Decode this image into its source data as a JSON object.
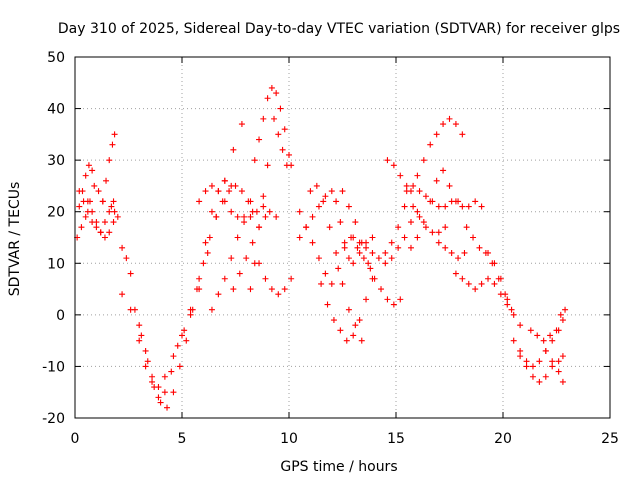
{
  "chart_data": {
    "type": "scatter",
    "title": "Day 310 of 2025, Sidereal Day-to-day VTEC variation (SDTVAR) for receiver glps",
    "xlabel": "GPS time / hours",
    "ylabel": "SDTVAR / TECUs",
    "xlim": [
      0,
      25
    ],
    "ylim": [
      -20,
      50
    ],
    "xticks": [
      "0",
      "5",
      "10",
      "15",
      "20",
      "25"
    ],
    "yticks": [
      "-20",
      "-10",
      "0",
      "10",
      "20",
      "30",
      "40",
      "50"
    ],
    "grid": true,
    "marker": "+",
    "marker_color": "#ff0000",
    "series": [
      {
        "name": "s1",
        "x": [
          0.1,
          0.3,
          0.5,
          0.7,
          0.9,
          1.1,
          1.3
        ],
        "y": [
          15,
          17,
          19,
          22,
          25,
          24,
          22
        ]
      },
      {
        "name": "s2",
        "x": [
          0.2,
          0.4,
          0.6,
          0.8,
          1.0,
          1.2,
          1.4,
          1.6,
          1.8
        ],
        "y": [
          24,
          22,
          20,
          18,
          17,
          16,
          18,
          20,
          22
        ]
      },
      {
        "name": "s3",
        "x": [
          0.2,
          0.35,
          0.5,
          0.65,
          0.8
        ],
        "y": [
          21,
          24,
          27,
          29,
          28
        ]
      },
      {
        "name": "s4",
        "x": [
          0.6,
          0.8,
          1.0,
          1.2,
          1.4,
          1.6,
          1.8
        ],
        "y": [
          22,
          20,
          18,
          16,
          15,
          16,
          18
        ]
      },
      {
        "name": "s5",
        "x": [
          1.3,
          1.45,
          1.6,
          1.75,
          1.85
        ],
        "y": [
          22,
          26,
          30,
          33,
          35
        ]
      },
      {
        "name": "s6",
        "x": [
          1.7,
          1.85,
          2.0
        ],
        "y": [
          21,
          20,
          19
        ]
      },
      {
        "name": "s7",
        "x": [
          2.2,
          2.4,
          2.6
        ],
        "y": [
          13,
          11,
          8
        ]
      },
      {
        "name": "s8",
        "x": [
          2.2,
          2.6,
          3.0,
          3.3,
          3.6,
          3.9,
          4.2,
          4.6,
          5.0,
          5.4,
          5.8,
          6.2,
          6.6,
          7.0,
          7.4,
          7.8
        ],
        "y": [
          4,
          1,
          -5,
          -10,
          -13,
          -14,
          -12,
          -8,
          -4,
          0,
          5,
          12,
          19,
          26,
          32,
          37
        ]
      },
      {
        "name": "s9",
        "x": [
          2.8,
          3.1,
          3.4,
          3.7,
          4.0,
          4.3,
          4.6,
          4.9,
          5.2,
          5.5,
          5.8,
          6.1,
          6.4,
          6.7,
          7.0,
          7.3
        ],
        "y": [
          1,
          -4,
          -9,
          -14,
          -17,
          -18,
          -15,
          -10,
          -5,
          1,
          7,
          14,
          20,
          24,
          26,
          25
        ]
      },
      {
        "name": "s10",
        "x": [
          3.0,
          3.3,
          3.6,
          3.9,
          4.2,
          4.5,
          4.8,
          5.1
        ],
        "y": [
          -2,
          -7,
          -12,
          -16,
          -15,
          -11,
          -6,
          -3
        ]
      },
      {
        "name": "s11",
        "x": [
          5.4,
          5.7,
          6.0,
          6.3,
          6.6,
          6.9,
          7.2,
          7.5,
          7.8,
          8.1,
          8.3
        ],
        "y": [
          1,
          5,
          10,
          15,
          19,
          22,
          24,
          25,
          24,
          22,
          20
        ]
      },
      {
        "name": "s12",
        "x": [
          5.8,
          6.1,
          6.4,
          6.7,
          7.0,
          7.3,
          7.6,
          7.9,
          8.2,
          8.5,
          8.8,
          9.1,
          9.4
        ],
        "y": [
          22,
          24,
          25,
          24,
          22,
          20,
          19,
          19,
          19,
          20,
          21,
          20,
          19
        ]
      },
      {
        "name": "s13",
        "x": [
          6.4,
          6.7,
          7.0,
          7.3,
          7.6,
          7.9,
          8.2
        ],
        "y": [
          1,
          4,
          7,
          11,
          15,
          18,
          22
        ]
      },
      {
        "name": "s14",
        "x": [
          7.4,
          7.7,
          8.0,
          8.3,
          8.6,
          8.9
        ],
        "y": [
          5,
          8,
          11,
          14,
          17,
          19
        ]
      },
      {
        "name": "s15",
        "x": [
          8.2,
          8.4,
          8.6,
          8.8,
          9.0
        ],
        "y": [
          5,
          10,
          17,
          23,
          29
        ]
      },
      {
        "name": "s16",
        "x": [
          8.4,
          8.6,
          8.8,
          9.0,
          9.2,
          9.4,
          9.6,
          9.8,
          10.0
        ],
        "y": [
          30,
          34,
          38,
          42,
          44,
          43,
          40,
          36,
          31
        ]
      },
      {
        "name": "s17",
        "x": [
          8.6,
          8.9,
          9.2,
          9.5,
          9.8,
          10.1
        ],
        "y": [
          10,
          7,
          5,
          4,
          5,
          7
        ]
      },
      {
        "name": "s18",
        "x": [
          9.3,
          9.5,
          9.7,
          9.9,
          10.1
        ],
        "y": [
          38,
          35,
          32,
          29,
          29
        ]
      },
      {
        "name": "s19",
        "x": [
          10.5,
          10.8,
          11.1,
          11.4,
          11.7,
          12.0,
          12.2,
          12.4,
          12.6,
          12.8,
          13.0,
          13.3,
          13.6,
          13.9
        ],
        "y": [
          15,
          17,
          19,
          21,
          23,
          24,
          22,
          18,
          14,
          11,
          10,
          12,
          14,
          15
        ]
      },
      {
        "name": "s20",
        "x": [
          10.5,
          10.8,
          11.1,
          11.4,
          11.7,
          12.0,
          12.3,
          12.6,
          12.9,
          13.2,
          13.5,
          13.8
        ],
        "y": [
          20,
          17,
          14,
          11,
          8,
          6,
          9,
          13,
          15,
          13,
          11,
          9
        ]
      },
      {
        "name": "s21",
        "x": [
          11.0,
          11.3,
          11.6,
          11.9,
          12.2,
          12.5,
          12.8,
          13.1,
          13.4
        ],
        "y": [
          24,
          25,
          22,
          17,
          12,
          6,
          1,
          -2,
          -5
        ]
      },
      {
        "name": "s22",
        "x": [
          11.5,
          11.8,
          12.1,
          12.4,
          12.7,
          13.0,
          13.3,
          13.6,
          13.9
        ],
        "y": [
          6,
          2,
          -1,
          -3,
          -5,
          -4,
          -1,
          3,
          7
        ]
      },
      {
        "name": "s23",
        "x": [
          12.5,
          12.8,
          13.1,
          13.4,
          13.7,
          14.0,
          14.3,
          14.6,
          14.9,
          15.2
        ],
        "y": [
          24,
          21,
          18,
          14,
          10,
          7,
          5,
          3,
          2,
          3
        ]
      },
      {
        "name": "s24",
        "x": [
          13.0,
          13.3,
          13.6,
          13.9,
          14.2,
          14.5,
          14.8,
          15.1,
          15.4,
          15.7,
          16.0
        ],
        "y": [
          15,
          14,
          13,
          12,
          11,
          10,
          11,
          13,
          15,
          18,
          20
        ]
      },
      {
        "name": "s25",
        "x": [
          14.5,
          14.8,
          15.1,
          15.4,
          15.7,
          16.0,
          16.3,
          16.6,
          16.9,
          17.2,
          17.5,
          17.8,
          18.1
        ],
        "y": [
          12,
          14,
          17,
          21,
          24,
          27,
          30,
          33,
          35,
          37,
          38,
          37,
          35
        ]
      },
      {
        "name": "s26",
        "x": [
          14.6,
          14.9,
          15.2,
          15.5,
          15.8,
          16.1,
          16.4,
          16.7,
          17.0,
          17.3
        ],
        "y": [
          30,
          29,
          27,
          24,
          21,
          19,
          17,
          16,
          16,
          17
        ]
      },
      {
        "name": "s27",
        "x": [
          15.5,
          15.8,
          16.1,
          16.4,
          16.7,
          17.0,
          17.3,
          17.6,
          17.9
        ],
        "y": [
          25,
          25,
          24,
          23,
          22,
          21,
          21,
          22,
          22
        ]
      },
      {
        "name": "s28",
        "x": [
          15.7,
          16.0,
          16.3,
          16.6,
          16.9,
          17.2,
          17.5,
          17.8,
          18.1,
          18.4,
          18.7,
          19.0
        ],
        "y": [
          13,
          15,
          18,
          22,
          26,
          28,
          25,
          22,
          21,
          21,
          22,
          21
        ]
      },
      {
        "name": "s29",
        "x": [
          17.0,
          17.3,
          17.6,
          17.9,
          18.2
        ],
        "y": [
          14,
          13,
          12,
          11,
          12
        ]
      },
      {
        "name": "s30",
        "x": [
          17.8,
          18.1,
          18.4,
          18.7,
          19.0,
          19.3,
          19.6,
          19.9,
          20.2
        ],
        "y": [
          8,
          7,
          6,
          5,
          6,
          7,
          6,
          4,
          2
        ]
      },
      {
        "name": "s31",
        "x": [
          18.3,
          18.6,
          18.9,
          19.2,
          19.5,
          19.8,
          20.1,
          20.4
        ],
        "y": [
          17,
          15,
          13,
          12,
          10,
          7,
          4,
          1
        ]
      },
      {
        "name": "s32",
        "x": [
          19.3,
          19.6,
          19.9,
          20.2,
          20.5,
          20.8
        ],
        "y": [
          12,
          10,
          7,
          3,
          0,
          -2
        ]
      },
      {
        "name": "s33",
        "x": [
          20.5,
          20.8,
          21.1,
          21.4,
          21.7,
          22.0,
          22.3,
          22.6,
          22.8
        ],
        "y": [
          -5,
          -8,
          -10,
          -12,
          -13,
          -12,
          -10,
          -9,
          -8
        ]
      },
      {
        "name": "s34",
        "x": [
          20.8,
          21.1,
          21.4,
          21.7,
          22.0,
          22.3,
          22.6,
          22.8
        ],
        "y": [
          -7,
          -9,
          -10,
          -9,
          -7,
          -5,
          -3,
          -1
        ]
      },
      {
        "name": "s35",
        "x": [
          21.3,
          21.6,
          21.9,
          22.2,
          22.5,
          22.7,
          22.9
        ],
        "y": [
          -3,
          -4,
          -5,
          -4,
          -3,
          0,
          1
        ]
      },
      {
        "name": "s36",
        "x": [
          22.0,
          22.3,
          22.6,
          22.8
        ],
        "y": [
          -7,
          -9,
          -11,
          -13
        ]
      }
    ]
  }
}
